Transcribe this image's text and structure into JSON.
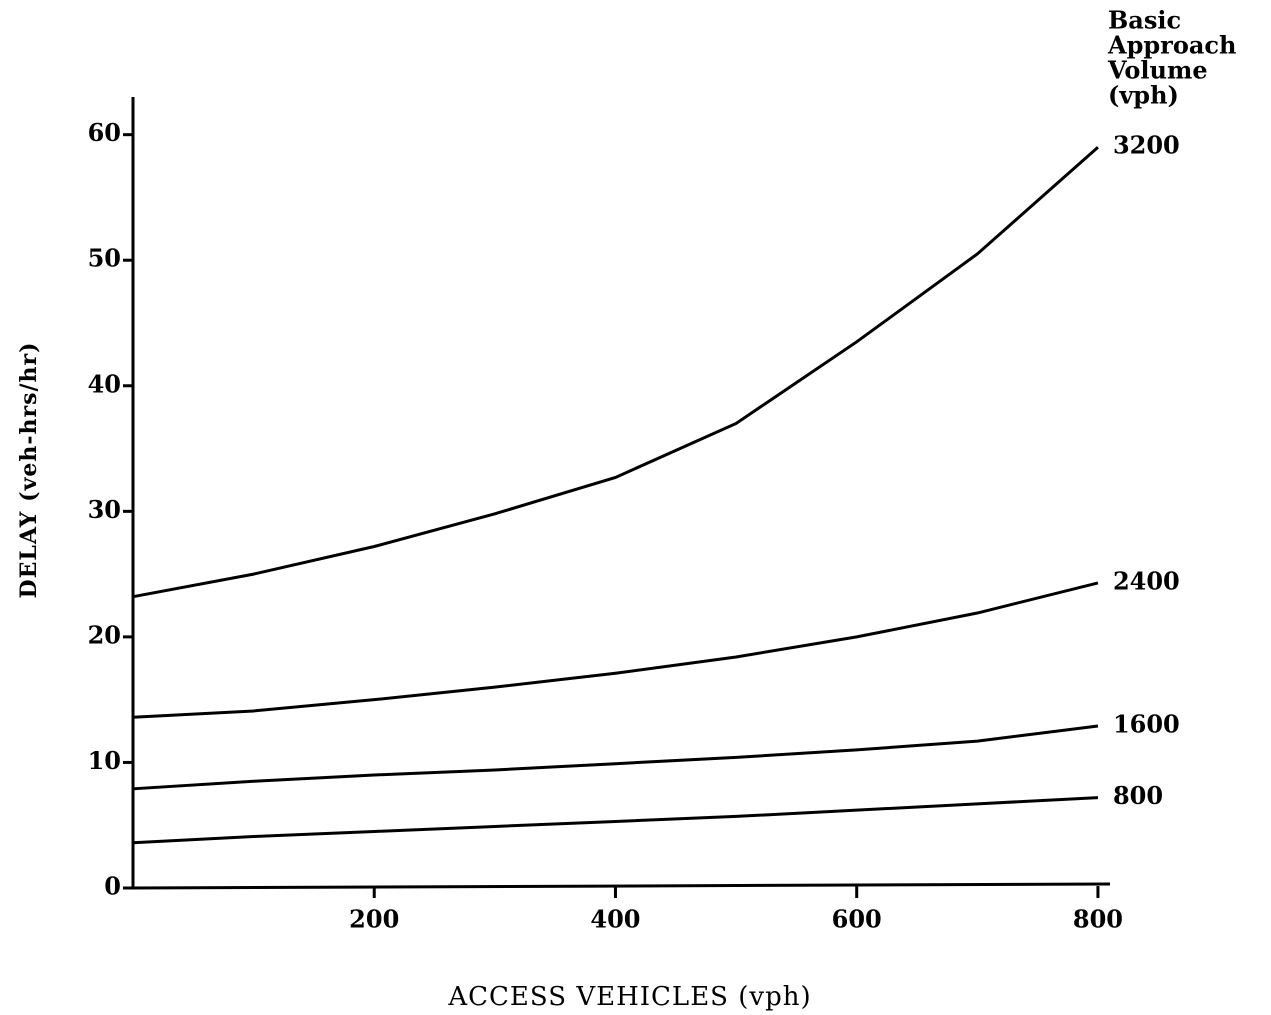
{
  "chart_data": {
    "type": "line",
    "x_label": "ACCESS VEHICLES (vph)",
    "y_label": "DELAY (veh-hrs/hr)",
    "legend_title": [
      "Basic",
      "Approach",
      "Volume",
      "(vph)"
    ],
    "x": [
      0,
      100,
      200,
      300,
      400,
      500,
      600,
      700,
      800
    ],
    "series": [
      {
        "name": "3200",
        "color": "#000000",
        "values": [
          23.2,
          25,
          27.2,
          29.8,
          32.7,
          37,
          43.5,
          50.5,
          59
        ]
      },
      {
        "name": "2400",
        "color": "#000000",
        "values": [
          13.6,
          14.1,
          15,
          16,
          17.1,
          18.4,
          20,
          21.9,
          24.3
        ]
      },
      {
        "name": "1600",
        "color": "#000000",
        "values": [
          7.9,
          8.5,
          9,
          9.4,
          9.9,
          10.4,
          11,
          11.7,
          12.9
        ]
      },
      {
        "name": "800",
        "color": "#000000",
        "values": [
          3.6,
          4.1,
          4.5,
          4.9,
          5.3,
          5.7,
          6.2,
          6.7,
          7.2
        ]
      }
    ],
    "xlim": [
      0,
      810
    ],
    "ylim": [
      0,
      63
    ],
    "xticks": [
      200,
      400,
      600,
      800
    ],
    "yticks": [
      0,
      10,
      20,
      30,
      40,
      50,
      60
    ],
    "grid": false
  }
}
